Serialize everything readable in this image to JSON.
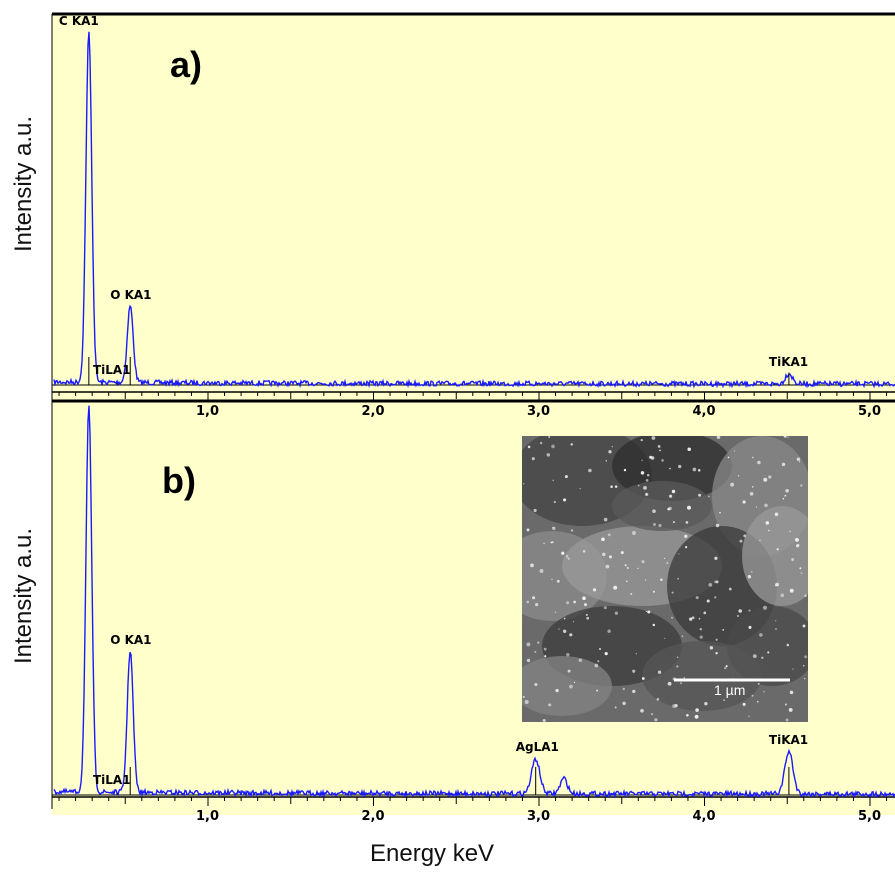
{
  "chart_data": [
    {
      "type": "line",
      "panel_label": "a)",
      "ylabel": "Intensity a.u.",
      "xlabel": "",
      "x_ticks": [
        "1,0",
        "2,0",
        "3,0",
        "4,0",
        "5,0"
      ],
      "xlim": [
        0.0,
        5.2
      ],
      "grid": false,
      "series": [
        {
          "color": "#1a1aff",
          "peaks": [
            {
              "label": "C KA1",
              "x": 0.28,
              "height": 1.0,
              "width": 0.025
            },
            {
              "label": "O KA1",
              "x": 0.53,
              "height": 0.22,
              "width": 0.025
            },
            {
              "label": "TiLA1",
              "x": 0.45,
              "height": 0.0,
              "width": 0.02
            },
            {
              "label": "TiKA1",
              "x": 4.51,
              "height": 0.03,
              "width": 0.03
            }
          ]
        }
      ]
    },
    {
      "type": "line",
      "panel_label": "b)",
      "ylabel": "Intensity a.u.",
      "xlabel": "Energy keV",
      "x_ticks": [
        "1,0",
        "2,0",
        "3,0",
        "4,0",
        "5,0"
      ],
      "xlim": [
        0.0,
        5.2
      ],
      "grid": false,
      "series": [
        {
          "color": "#1a1aff",
          "peaks": [
            {
              "label": "",
              "x": 0.28,
              "height": 1.0,
              "width": 0.025
            },
            {
              "label": "O KA1",
              "x": 0.53,
              "height": 0.37,
              "width": 0.025
            },
            {
              "label": "TiLA1",
              "x": 0.45,
              "height": 0.0,
              "width": 0.02
            },
            {
              "label": "AgLA1",
              "x": 2.98,
              "height": 0.09,
              "width": 0.035
            },
            {
              "label": "",
              "x": 3.15,
              "height": 0.04,
              "width": 0.03
            },
            {
              "label": "TiKA1",
              "x": 4.51,
              "height": 0.11,
              "width": 0.035
            }
          ]
        }
      ]
    }
  ],
  "inset": {
    "scale_bar_label": "1 µm"
  }
}
